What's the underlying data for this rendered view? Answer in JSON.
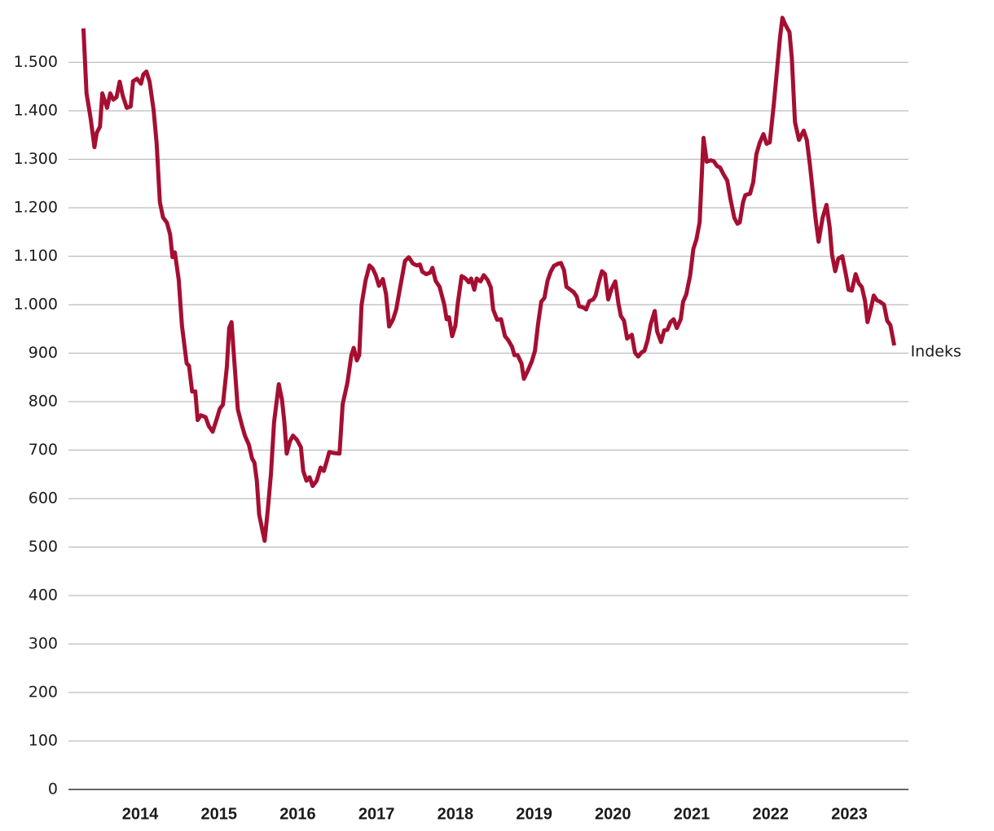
{
  "chart_data": {
    "type": "line",
    "x": [
      2013.28,
      2013.32,
      2013.37,
      2013.42,
      2013.45,
      2013.49,
      2013.52,
      2013.58,
      2013.62,
      2013.66,
      2013.7,
      2013.74,
      2013.78,
      2013.83,
      2013.88,
      2013.91,
      2013.96,
      2014.01,
      2014.04,
      2014.08,
      2014.12,
      2014.17,
      2014.21,
      2014.25,
      2014.29,
      2014.34,
      2014.38,
      2014.41,
      2014.44,
      2014.49,
      2014.53,
      2014.59,
      2014.62,
      2014.66,
      2014.7,
      2014.73,
      2014.77,
      2014.83,
      2014.87,
      2014.92,
      2014.97,
      2015.01,
      2015.05,
      2015.1,
      2015.13,
      2015.16,
      2015.19,
      2015.24,
      2015.29,
      2015.33,
      2015.38,
      2015.42,
      2015.45,
      2015.48,
      2015.51,
      2015.55,
      2015.58,
      2015.62,
      2015.66,
      2015.7,
      2015.76,
      2015.8,
      2015.83,
      2015.86,
      2015.9,
      2015.94,
      2015.99,
      2016.04,
      2016.07,
      2016.11,
      2016.15,
      2016.19,
      2016.24,
      2016.29,
      2016.33,
      2016.37,
      2016.4,
      2016.46,
      2016.53,
      2016.57,
      2016.63,
      2016.68,
      2016.71,
      2016.75,
      2016.78,
      2016.81,
      2016.86,
      2016.91,
      2016.95,
      2016.99,
      2017.03,
      2017.08,
      2017.12,
      2017.16,
      2017.21,
      2017.25,
      2017.29,
      2017.33,
      2017.36,
      2017.41,
      2017.46,
      2017.51,
      2017.55,
      2017.58,
      2017.63,
      2017.68,
      2017.71,
      2017.75,
      2017.8,
      2017.86,
      2017.89,
      2017.92,
      2017.96,
      2018.0,
      2018.03,
      2018.08,
      2018.13,
      2018.17,
      2018.2,
      2018.24,
      2018.27,
      2018.32,
      2018.36,
      2018.41,
      2018.45,
      2018.48,
      2018.53,
      2018.58,
      2018.63,
      2018.67,
      2018.72,
      2018.75,
      2018.79,
      2018.84,
      2018.87,
      2018.92,
      2018.97,
      2019.01,
      2019.05,
      2019.09,
      2019.13,
      2019.17,
      2019.21,
      2019.25,
      2019.31,
      2019.34,
      2019.38,
      2019.41,
      2019.46,
      2019.5,
      2019.54,
      2019.57,
      2019.63,
      2019.66,
      2019.7,
      2019.75,
      2019.78,
      2019.82,
      2019.86,
      2019.9,
      2019.94,
      2019.98,
      2020.03,
      2020.07,
      2020.1,
      2020.14,
      2020.18,
      2020.24,
      2020.28,
      2020.32,
      2020.36,
      2020.4,
      2020.44,
      2020.48,
      2020.53,
      2020.56,
      2020.61,
      2020.65,
      2020.69,
      2020.73,
      2020.77,
      2020.81,
      2020.86,
      2020.89,
      2020.93,
      2020.98,
      2021.02,
      2021.06,
      2021.1,
      2021.15,
      2021.19,
      2021.24,
      2021.28,
      2021.32,
      2021.36,
      2021.4,
      2021.45,
      2021.49,
      2021.54,
      2021.58,
      2021.61,
      2021.65,
      2021.68,
      2021.74,
      2021.78,
      2021.82,
      2021.86,
      2021.91,
      2021.95,
      2021.99,
      2022.04,
      2022.08,
      2022.12,
      2022.15,
      2022.19,
      2022.24,
      2022.27,
      2022.31,
      2022.36,
      2022.42,
      2022.46,
      2022.5,
      2022.54,
      2022.57,
      2022.61,
      2022.66,
      2022.71,
      2022.75,
      2022.78,
      2022.82,
      2022.86,
      2022.91,
      2022.96,
      2022.99,
      2023.03,
      2023.08,
      2023.12,
      2023.16,
      2023.2,
      2023.23,
      2023.27,
      2023.31,
      2023.35,
      2023.39,
      2023.44,
      2023.48,
      2023.52,
      2023.57
    ],
    "series": [
      {
        "name": "Indeks",
        "color": "#a50f32",
        "values": [
          1570,
          1436,
          1386,
          1325,
          1355,
          1367,
          1436,
          1406,
          1436,
          1423,
          1428,
          1460,
          1431,
          1406,
          1409,
          1461,
          1466,
          1456,
          1475,
          1481,
          1460,
          1402,
          1332,
          1212,
          1180,
          1169,
          1145,
          1098,
          1108,
          1051,
          957,
          879,
          874,
          821,
          821,
          762,
          772,
          768,
          750,
          738,
          763,
          785,
          794,
          871,
          952,
          964,
          895,
          784,
          752,
          730,
          711,
          683,
          674,
          637,
          567,
          536,
          513,
          577,
          652,
          758,
          836,
          804,
          758,
          693,
          718,
          730,
          721,
          706,
          657,
          637,
          644,
          626,
          637,
          664,
          657,
          678,
          696,
          694,
          693,
          795,
          839,
          895,
          911,
          885,
          896,
          1000,
          1049,
          1081,
          1075,
          1061,
          1039,
          1053,
          1022,
          955,
          970,
          990,
          1027,
          1063,
          1090,
          1098,
          1085,
          1081,
          1083,
          1068,
          1063,
          1066,
          1076,
          1049,
          1037,
          1000,
          970,
          974,
          935,
          957,
          1002,
          1059,
          1054,
          1046,
          1054,
          1031,
          1054,
          1048,
          1061,
          1051,
          1036,
          990,
          969,
          970,
          935,
          927,
          913,
          896,
          896,
          879,
          847,
          864,
          883,
          905,
          960,
          1006,
          1014,
          1049,
          1068,
          1080,
          1085,
          1086,
          1071,
          1037,
          1031,
          1026,
          1017,
          997,
          994,
          990,
          1007,
          1011,
          1019,
          1046,
          1069,
          1063,
          1011,
          1032,
          1048,
          1002,
          977,
          967,
          930,
          938,
          901,
          893,
          901,
          905,
          927,
          960,
          987,
          945,
          923,
          947,
          948,
          964,
          970,
          952,
          970,
          1006,
          1021,
          1061,
          1115,
          1135,
          1170,
          1344,
          1295,
          1298,
          1296,
          1286,
          1283,
          1270,
          1256,
          1219,
          1179,
          1167,
          1170,
          1211,
          1226,
          1229,
          1253,
          1310,
          1333,
          1352,
          1332,
          1335,
          1411,
          1481,
          1552,
          1592,
          1577,
          1562,
          1508,
          1377,
          1340,
          1359,
          1340,
          1288,
          1226,
          1179,
          1130,
          1179,
          1206,
          1160,
          1103,
          1069,
          1095,
          1100,
          1059,
          1031,
          1029,
          1063,
          1044,
          1036,
          1007,
          964,
          990,
          1019,
          1009,
          1006,
          1000,
          967,
          958,
          916
        ]
      }
    ],
    "xlim": [
      2013.09,
      2023.75
    ],
    "xticks": [
      2014,
      2015,
      2016,
      2017,
      2018,
      2019,
      2020,
      2021,
      2022,
      2023
    ],
    "ylim": [
      0,
      1600
    ],
    "yticks": [
      0,
      100,
      200,
      300,
      400,
      500,
      600,
      700,
      800,
      900,
      {
        "value": 1000,
        "label": "1.000"
      },
      {
        "value": 1100,
        "label": "1.100"
      },
      {
        "value": 1200,
        "label": "1.200"
      },
      {
        "value": 1300,
        "label": "1.300"
      },
      {
        "value": 1400,
        "label": "1.400"
      },
      {
        "value": 1500,
        "label": "1.500"
      }
    ],
    "grid": true
  }
}
